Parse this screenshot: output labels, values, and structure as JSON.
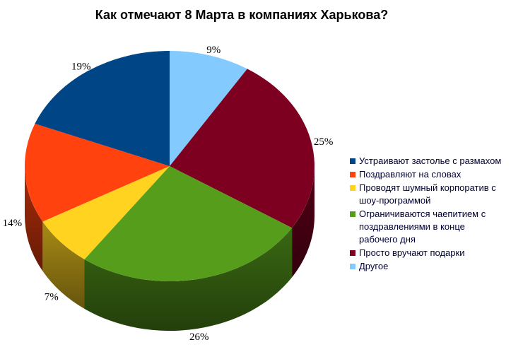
{
  "title": "Как отмечают 8 Марта в компаниях Харькова?",
  "background_color": "#FFFFFF",
  "title_color": "#000000",
  "label_color": "#000000",
  "legend_text_color": "#000033",
  "chart_data": {
    "type": "pie",
    "style": "3d-pie",
    "title": "Как отмечают 8 Марта в компаниях Харькова?",
    "unit": "%",
    "legend_position": "right",
    "slice_order_note": "slices drawn counter-clockwise from 12 o'clock in legend order (i.e. last legend item starts at top going clockwise)",
    "series": [
      {
        "label": "Устраивают застолье с размахом",
        "value": 19,
        "value_label": "19%",
        "color": "#004586"
      },
      {
        "label": "Поздравляют на словах",
        "value": 14,
        "value_label": "14%",
        "color": "#FF420E"
      },
      {
        "label": "Проводят шумный корпоратив с шоу-программой",
        "value": 7,
        "value_label": "7%",
        "color": "#FFD320"
      },
      {
        "label": "Ограничиваются чаепитием с поздравлениями в конце рабочего дня",
        "value": 26,
        "value_label": "26%",
        "color": "#579D1C"
      },
      {
        "label": "Просто вручают подарки",
        "value": 25,
        "value_label": "25%",
        "color": "#7E0021"
      },
      {
        "label": "Другое",
        "value": 9,
        "value_label": "9%",
        "color": "#83CAFF"
      }
    ]
  }
}
